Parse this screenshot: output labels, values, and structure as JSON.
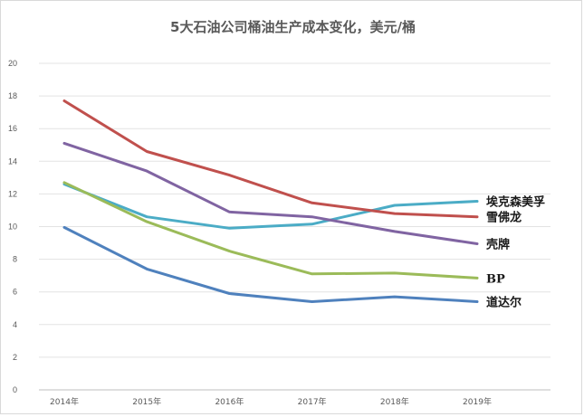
{
  "chart_data": {
    "type": "line",
    "title": "5大石油公司桶油生产成本变化，美元/桶",
    "xlabel": "",
    "ylabel": "",
    "categories": [
      "2014年",
      "2015年",
      "2016年",
      "2017年",
      "2018年",
      "2019年"
    ],
    "ylim": [
      0,
      20
    ],
    "yticks": [
      0,
      2,
      4,
      6,
      8,
      10,
      12,
      14,
      16,
      18,
      20
    ],
    "grid": true,
    "legend": "none",
    "series": [
      {
        "name": "埃克森美孚",
        "values": [
          12.6,
          10.6,
          9.9,
          10.15,
          11.3,
          11.55
        ],
        "color": "#4bacc6"
      },
      {
        "name": "雪佛龙",
        "values": [
          17.7,
          14.6,
          13.15,
          11.45,
          10.8,
          10.6
        ],
        "color": "#c0504d"
      },
      {
        "name": "壳牌",
        "values": [
          15.1,
          13.4,
          10.9,
          10.6,
          9.7,
          8.95
        ],
        "color": "#8064a2"
      },
      {
        "name": "BP",
        "values": [
          12.7,
          10.3,
          8.5,
          7.1,
          7.15,
          6.85
        ],
        "color": "#9bbb59"
      },
      {
        "name": "道达尔",
        "values": [
          9.95,
          7.4,
          5.9,
          5.4,
          5.7,
          5.4
        ],
        "color": "#4f81bd"
      }
    ]
  }
}
